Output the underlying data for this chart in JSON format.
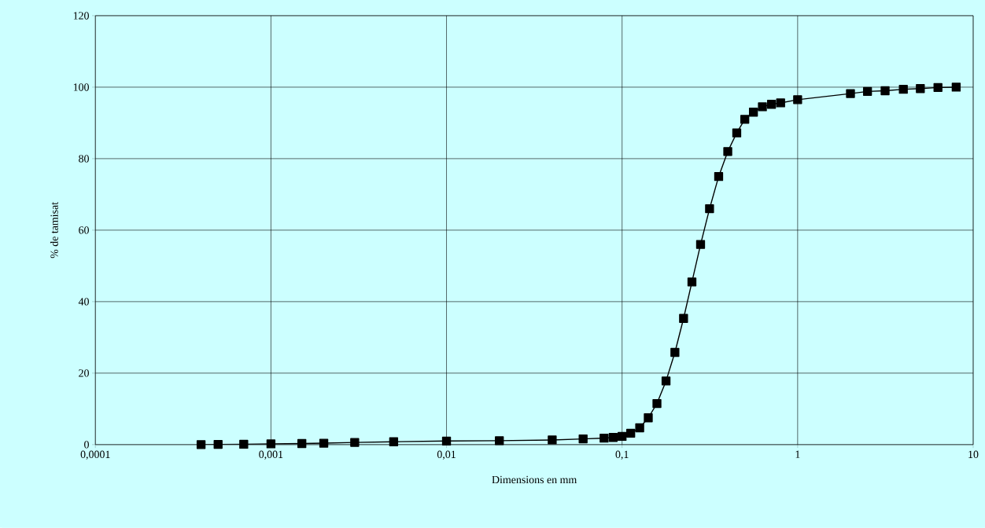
{
  "chart_data": {
    "type": "line",
    "xlabel": "Dimensions en mm",
    "ylabel": "% de tamisat",
    "log": "x",
    "grid": true,
    "marker": "square",
    "line_style": "solid",
    "xlim": [
      0.0001,
      10
    ],
    "ylim": [
      0,
      120
    ],
    "xticks": [
      {
        "value": 0.0001,
        "label": "0,0001"
      },
      {
        "value": 0.001,
        "label": "0,001"
      },
      {
        "value": 0.01,
        "label": "0,01"
      },
      {
        "value": 0.1,
        "label": "0,1"
      },
      {
        "value": 1,
        "label": "1"
      },
      {
        "value": 10,
        "label": "10"
      }
    ],
    "yticks": [
      0,
      20,
      40,
      60,
      80,
      100,
      120
    ],
    "x": [
      0.0004,
      0.0005,
      0.0007,
      0.001,
      0.0015,
      0.002,
      0.003,
      0.005,
      0.01,
      0.02,
      0.04,
      0.06,
      0.079,
      0.089,
      0.1,
      0.112,
      0.126,
      0.141,
      0.158,
      0.178,
      0.2,
      0.224,
      0.25,
      0.28,
      0.315,
      0.355,
      0.4,
      0.45,
      0.5,
      0.56,
      0.63,
      0.71,
      0.8,
      1,
      2,
      2.5,
      3.15,
      4,
      5,
      6.3,
      8
    ],
    "series": [
      {
        "color": "#000000",
        "values": [
          0,
          0.05,
          0.1,
          0.2,
          0.3,
          0.4,
          0.6,
          0.8,
          1.0,
          1.1,
          1.3,
          1.6,
          1.8,
          2.0,
          2.3,
          3.2,
          4.7,
          7.5,
          11.5,
          17.8,
          25.8,
          35.3,
          45.5,
          56,
          66,
          75,
          82,
          87.2,
          91,
          93,
          94.5,
          95.2,
          95.6,
          96.5,
          98.2,
          98.8,
          99,
          99.4,
          99.6,
          99.9,
          100
        ]
      }
    ]
  }
}
